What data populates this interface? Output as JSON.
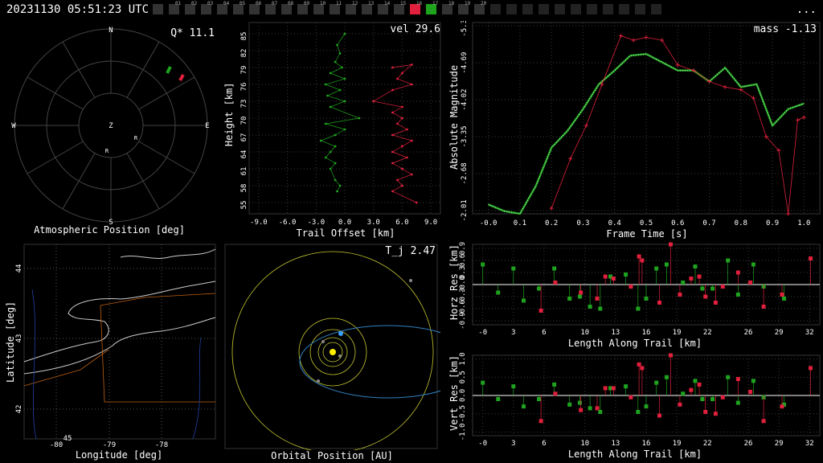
{
  "header": {
    "timestamp": "20231130 05:51:23 UTC",
    "menu": "..."
  },
  "cams": {
    "labels": [
      "",
      "01",
      "02",
      "03",
      "04",
      "05",
      "06",
      "07",
      "08",
      "09",
      "10",
      "11",
      "12",
      "13",
      "14",
      "15",
      "16",
      "17",
      "18",
      "19",
      "20",
      "",
      "",
      "",
      "",
      "",
      "",
      "",
      "",
      "",
      "",
      ""
    ],
    "active_red": "16",
    "active_green": "17"
  },
  "colors": {
    "grid": "#3a3a3a",
    "green": "#1fa31f",
    "red": "#e0203c",
    "yellow": "#c8c832",
    "blue": "#3aa0ff",
    "orange": "#c06010"
  },
  "atmos": {
    "title": "Atmospheric Position [deg]",
    "corner": "Q* 11.1",
    "dirs": {
      "n": "N",
      "s": "S",
      "e": "E",
      "w": "W",
      "z": "Z"
    },
    "markers": [
      "R",
      "R"
    ]
  },
  "height": {
    "title": "Trail Offset [km]",
    "ylabel": "Height [km]",
    "corner": "vel 29.6",
    "yticks": [
      "55",
      "58",
      "61",
      "64",
      "67",
      "70",
      "73",
      "76",
      "79",
      "82",
      "85"
    ],
    "xticks": [
      "-9.0",
      "-6.0",
      "-3.0",
      "0.0",
      "3.0",
      "6.0",
      "9.0"
    ]
  },
  "lightcurve": {
    "title": "Frame Time [s]",
    "ylabel": "Absolute Magnitude",
    "corner": "mass -1.13",
    "yticks": [
      "-2.01",
      "-2.68",
      "-3.35",
      "-4.02",
      "-4.69",
      "-5.36"
    ],
    "xticks": [
      "-0.0",
      "0.1",
      "0.2",
      "0.3",
      "0.4",
      "0.5",
      "0.6",
      "0.7",
      "0.8",
      "0.9",
      "1.0"
    ]
  },
  "map": {
    "title": "Longitude [deg]",
    "ylabel": "Latitude [deg]",
    "yticks": [
      "44",
      "43",
      "42"
    ],
    "xticks": [
      "-80",
      "-79",
      "-78"
    ],
    "small": "45"
  },
  "orbit": {
    "title": "Orbital Position [AU]",
    "corner": "T_j 2.47"
  },
  "horz": {
    "ylabel": "Horz Res [km]",
    "xlabel": "Length Along Trail [km]",
    "yticks": [
      "0.9",
      "0.6",
      "0.3",
      "-0.0",
      "-0.3",
      "-0.6",
      "-0.9"
    ],
    "xticks": [
      "-0",
      "3",
      "6",
      "10",
      "13",
      "16",
      "19",
      "22",
      "26",
      "29",
      "32"
    ]
  },
  "vert": {
    "ylabel": "Vert Res [km]",
    "xlabel": "Length Along Trail [km]",
    "yticks": [
      "1.0",
      "0.5",
      "0.0",
      "-0.5",
      "-1.0"
    ],
    "xticks": [
      "-0",
      "3",
      "6",
      "10",
      "13",
      "16",
      "19",
      "22",
      "26",
      "29",
      "32"
    ]
  },
  "chart_data": [
    {
      "type": "scatter",
      "title": "",
      "xlabel": "Trail Offset [km]",
      "ylabel": "Height [km]",
      "xlim": [
        -10,
        10
      ],
      "ylim": [
        53,
        87
      ],
      "series": [
        {
          "points": [
            [
              0,
              85
            ],
            [
              -0.8,
              83
            ],
            [
              -0.5,
              81.5
            ],
            [
              -1,
              80
            ],
            [
              -0.3,
              79
            ],
            [
              -1.5,
              78
            ],
            [
              0,
              77
            ],
            [
              -2,
              76
            ],
            [
              -0.5,
              75
            ],
            [
              -1.8,
              74
            ],
            [
              0,
              73
            ],
            [
              -1.5,
              72
            ],
            [
              1.5,
              70
            ],
            [
              -2,
              69
            ],
            [
              0,
              68
            ],
            [
              -1,
              67
            ],
            [
              -2.5,
              66
            ],
            [
              -1,
              65
            ],
            [
              -1.5,
              64
            ],
            [
              -2,
              63
            ],
            [
              -1,
              62
            ],
            [
              -1.5,
              61
            ],
            [
              -1,
              59
            ],
            [
              -0.5,
              58
            ],
            [
              -0.8,
              57
            ]
          ]
        },
        {
          "points": [
            [
              5,
              79
            ],
            [
              7,
              79.5
            ],
            [
              6,
              78
            ],
            [
              5.5,
              77
            ],
            [
              7,
              76
            ],
            [
              5,
              75
            ],
            [
              3,
              73
            ],
            [
              6,
              72
            ],
            [
              5,
              71
            ],
            [
              6,
              70
            ],
            [
              5.5,
              69
            ],
            [
              6.5,
              68
            ],
            [
              5,
              67
            ],
            [
              7,
              66
            ],
            [
              6,
              65
            ],
            [
              5,
              64
            ],
            [
              6.5,
              63
            ],
            [
              5,
              62
            ],
            [
              6,
              61
            ],
            [
              7,
              60
            ],
            [
              5.5,
              59
            ],
            [
              6,
              58
            ],
            [
              5,
              57
            ],
            [
              7.5,
              55
            ]
          ]
        }
      ]
    },
    {
      "type": "line",
      "title": "",
      "xlabel": "Frame Time [s]",
      "ylabel": "Absolute Magnitude",
      "xlim": [
        -0.05,
        1.05
      ],
      "ylim": [
        -1.95,
        -5.42
      ],
      "series": [
        {
          "x": [
            0.0,
            0.05,
            0.1,
            0.15,
            0.2,
            0.25,
            0.3,
            0.35,
            0.4,
            0.45,
            0.5,
            0.55,
            0.6,
            0.65,
            0.7,
            0.75,
            0.8,
            0.85,
            0.9,
            0.95,
            1.0
          ],
          "y": [
            -2.12,
            -2.0,
            -1.95,
            -2.45,
            -3.15,
            -3.45,
            -3.85,
            -4.3,
            -4.55,
            -4.82,
            -4.85,
            -4.7,
            -4.55,
            -4.55,
            -4.35,
            -4.6,
            -4.25,
            -4.3,
            -3.55,
            -3.85,
            -3.95
          ]
        },
        {
          "x": [
            0.2,
            0.26,
            0.31,
            0.36,
            0.42,
            0.46,
            0.5,
            0.55,
            0.6,
            0.65,
            0.7,
            0.75,
            0.8,
            0.84,
            0.88,
            0.92,
            0.95,
            0.98,
            1.0
          ],
          "y": [
            -2.05,
            -2.95,
            -3.55,
            -4.3,
            -5.18,
            -5.1,
            -5.15,
            -5.1,
            -4.65,
            -4.55,
            -4.35,
            -4.25,
            -4.2,
            -4.05,
            -3.35,
            -3.1,
            -1.95,
            -3.65,
            -3.7
          ]
        }
      ]
    },
    {
      "type": "bar",
      "title": "",
      "xlabel": "Length Along Trail [km]",
      "ylabel": "Horz Res [km]",
      "xlim": [
        -1,
        33
      ],
      "ylim": [
        -1.0,
        1.0
      ],
      "series": [
        {
          "x": [
            0,
            1.5,
            3,
            4,
            5.5,
            7,
            8.5,
            9.5,
            10.5,
            11.5,
            12.5,
            14,
            15.2,
            16,
            17,
            18,
            19.6,
            20.8,
            21.5,
            22.5,
            24,
            25,
            26.5,
            27.5,
            29.5
          ],
          "values": [
            0.5,
            -0.2,
            0.4,
            -0.4,
            -0.1,
            0.4,
            -0.35,
            -0.3,
            -0.55,
            -0.6,
            0.2,
            0.25,
            -0.6,
            -0.35,
            0.4,
            0.5,
            0.05,
            0.45,
            -0.1,
            -0.1,
            0.6,
            -0.25,
            0.5,
            -0.05,
            -0.35
          ]
        },
        {
          "x": [
            5.7,
            7.1,
            9.6,
            11.2,
            12,
            12.8,
            14.5,
            15.3,
            15.6,
            17.3,
            18.4,
            19.3,
            20.4,
            21.2,
            21.8,
            22.8,
            23.5,
            25,
            26.2,
            27.5,
            29.3,
            32.1
          ],
          "values": [
            -0.65,
            0.05,
            -0.2,
            -0.35,
            0.2,
            0.15,
            -0.05,
            0.7,
            0.6,
            -0.45,
            1.0,
            -0.25,
            0.15,
            0.2,
            -0.3,
            -0.45,
            -0.05,
            0.3,
            0.05,
            -0.55,
            -0.25,
            0.65
          ]
        }
      ]
    },
    {
      "type": "bar",
      "title": "",
      "xlabel": "Length Along Trail [km]",
      "ylabel": "Vert Res [km]",
      "xlim": [
        -1,
        33
      ],
      "ylim": [
        -1.1,
        1.1
      ],
      "series": [
        {
          "x": [
            0,
            1.5,
            3,
            4,
            5.5,
            7,
            8.5,
            9.5,
            10.5,
            11.5,
            12.5,
            14,
            15.2,
            16,
            17,
            18,
            19.6,
            20.8,
            21.5,
            22.5,
            24,
            25,
            26.5,
            27.5,
            29.5
          ],
          "values": [
            0.35,
            -0.1,
            0.25,
            -0.3,
            -0.1,
            0.3,
            -0.25,
            -0.2,
            -0.35,
            -0.45,
            0.2,
            0.25,
            -0.45,
            -0.3,
            0.35,
            0.5,
            0.05,
            0.4,
            -0.1,
            -0.1,
            0.5,
            -0.2,
            0.4,
            -0.05,
            -0.25
          ]
        },
        {
          "x": [
            5.7,
            7.1,
            9.6,
            11.2,
            12,
            12.8,
            14.5,
            15.3,
            15.6,
            17.3,
            18.4,
            19.3,
            20.4,
            21.2,
            21.8,
            22.8,
            23.5,
            25,
            26.2,
            27.5,
            29.3,
            32.1
          ],
          "values": [
            -0.7,
            0.05,
            -0.4,
            -0.35,
            0.2,
            0.2,
            -0.05,
            0.85,
            0.75,
            -0.55,
            1.1,
            -0.25,
            0.15,
            0.3,
            -0.45,
            -0.5,
            -0.05,
            0.45,
            0.1,
            -0.7,
            -0.3,
            0.75
          ]
        }
      ]
    }
  ]
}
